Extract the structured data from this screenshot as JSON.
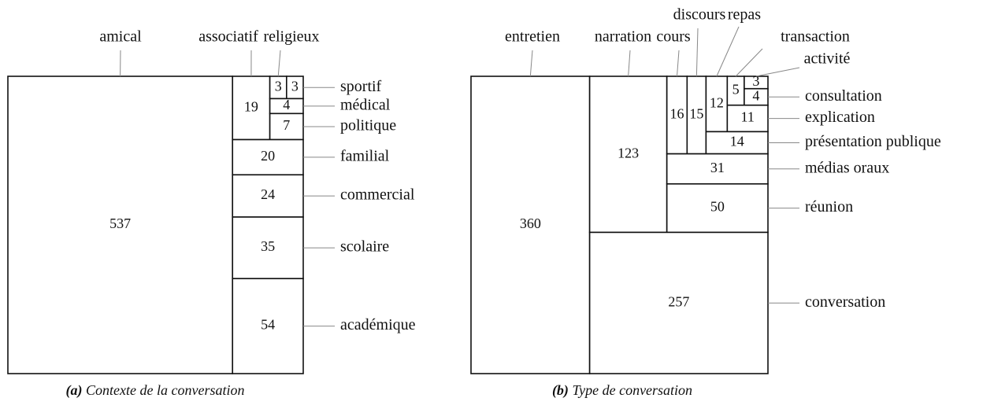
{
  "chart_data": [
    {
      "type": "treemap",
      "caption_label": "(a)",
      "caption": "Contexte de la conversation",
      "categories": [
        "amical",
        "associatif",
        "religieux",
        "sportif",
        "médical",
        "politique",
        "familial",
        "commercial",
        "scolaire",
        "académique"
      ],
      "values": [
        537,
        19,
        3,
        3,
        4,
        7,
        20,
        24,
        35,
        54
      ]
    },
    {
      "type": "treemap",
      "caption_label": "(b)",
      "caption": "Type de conversation",
      "categories": [
        "entretien",
        "narration",
        "cours",
        "discours",
        "repas",
        "transaction",
        "activité",
        "consultation",
        "explication",
        "présentation publique",
        "médias oraux",
        "réunion",
        "conversation"
      ],
      "values": [
        360,
        123,
        16,
        15,
        12,
        5,
        3,
        4,
        11,
        14,
        31,
        50,
        257
      ]
    }
  ]
}
